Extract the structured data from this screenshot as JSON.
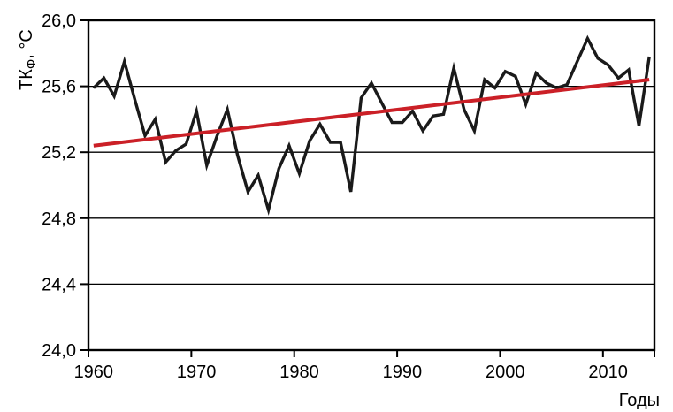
{
  "chart_data": {
    "type": "line",
    "title": "",
    "xlabel": "Годы",
    "ylabel_base": "ТК",
    "ylabel_sub": "Ф",
    "ylabel_suffix": ", °С",
    "ylim": [
      24.0,
      26.0
    ],
    "y_tick_step": 0.4,
    "y_tick_values": [
      26.0,
      25.6,
      25.2,
      24.8,
      24.4,
      24.0
    ],
    "y_tick_labels": [
      "26,0",
      "25,6",
      "25,2",
      "24,8",
      "24,4",
      "24,0"
    ],
    "x_tick_years": [
      1960,
      1970,
      1980,
      1990,
      2000,
      2010
    ],
    "x_tick_labels": [
      "1960",
      "1970",
      "1980",
      "1990",
      "2000",
      "2010"
    ],
    "grid": "horizontal",
    "legend": "none",
    "x": [
      1960,
      1961,
      1962,
      1963,
      1964,
      1965,
      1966,
      1967,
      1968,
      1969,
      1970,
      1971,
      1972,
      1973,
      1974,
      1975,
      1976,
      1977,
      1978,
      1979,
      1980,
      1981,
      1982,
      1983,
      1984,
      1985,
      1986,
      1987,
      1988,
      1989,
      1990,
      1991,
      1992,
      1993,
      1994,
      1995,
      1996,
      1997,
      1998,
      1999,
      2000,
      2001,
      2002,
      2003,
      2004,
      2005,
      2006,
      2007,
      2008,
      2009,
      2010,
      2011,
      2012,
      2013,
      2014
    ],
    "series": [
      {
        "name": "observed-temperature",
        "color": "#1a1a1a",
        "width": 3.4,
        "values": [
          25.59,
          25.65,
          25.54,
          25.75,
          25.52,
          25.3,
          25.4,
          25.14,
          25.21,
          25.25,
          25.45,
          25.12,
          25.3,
          25.46,
          25.18,
          24.96,
          25.06,
          24.85,
          25.1,
          25.24,
          25.07,
          25.27,
          25.37,
          25.26,
          25.26,
          24.96,
          25.53,
          25.62,
          25.5,
          25.38,
          25.38,
          25.45,
          25.33,
          25.42,
          25.43,
          25.71,
          25.46,
          25.33,
          25.64,
          25.59,
          25.69,
          25.66,
          25.49,
          25.68,
          25.62,
          25.59,
          25.61,
          25.75,
          25.89,
          25.77,
          25.73,
          25.65,
          25.7,
          25.36,
          25.78
        ]
      },
      {
        "name": "linear-trend",
        "color": "#cb2027",
        "width": 4,
        "trend_start": 25.24,
        "trend_end": 25.64
      }
    ]
  },
  "colors": {
    "frame": "#000000",
    "grid": "#000000",
    "background": "#ffffff"
  }
}
